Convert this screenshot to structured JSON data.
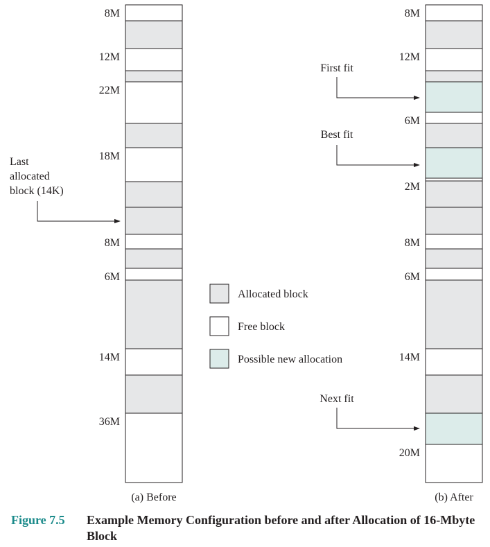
{
  "colors": {
    "allocated": "#e6e7e8",
    "free": "#ffffff",
    "possible": "#dcecea",
    "caption_accent": "#1a8a8a"
  },
  "before": {
    "sublabel": "(a) Before",
    "blocks": [
      {
        "type": "free",
        "size_label": "8M"
      },
      {
        "type": "allocated",
        "size_label": ""
      },
      {
        "type": "free",
        "size_label": "12M"
      },
      {
        "type": "allocated",
        "size_label": ""
      },
      {
        "type": "free",
        "size_label": "22M"
      },
      {
        "type": "allocated",
        "size_label": ""
      },
      {
        "type": "free",
        "size_label": "18M"
      },
      {
        "type": "allocated",
        "size_label": ""
      },
      {
        "type": "allocated",
        "size_label": ""
      },
      {
        "type": "free",
        "size_label": "8M"
      },
      {
        "type": "allocated",
        "size_label": ""
      },
      {
        "type": "free",
        "size_label": "6M"
      },
      {
        "type": "allocated",
        "size_label": ""
      },
      {
        "type": "free",
        "size_label": "14M"
      },
      {
        "type": "allocated",
        "size_label": ""
      },
      {
        "type": "free",
        "size_label": "36M"
      }
    ],
    "pointer": {
      "lines": [
        "Last",
        "allocated",
        "block (14K)"
      ]
    }
  },
  "after": {
    "sublabel": "(b) After",
    "blocks": [
      {
        "type": "free",
        "size_label": "8M"
      },
      {
        "type": "allocated",
        "size_label": ""
      },
      {
        "type": "free",
        "size_label": "12M"
      },
      {
        "type": "allocated",
        "size_label": ""
      },
      {
        "type": "possible",
        "size_label": ""
      },
      {
        "type": "free",
        "size_label": "6M"
      },
      {
        "type": "allocated",
        "size_label": ""
      },
      {
        "type": "possible",
        "size_label": ""
      },
      {
        "type": "free",
        "size_label": "2M"
      },
      {
        "type": "allocated",
        "size_label": ""
      },
      {
        "type": "allocated",
        "size_label": ""
      },
      {
        "type": "free",
        "size_label": "8M"
      },
      {
        "type": "allocated",
        "size_label": ""
      },
      {
        "type": "free",
        "size_label": "6M"
      },
      {
        "type": "allocated",
        "size_label": ""
      },
      {
        "type": "free",
        "size_label": "14M"
      },
      {
        "type": "allocated",
        "size_label": ""
      },
      {
        "type": "possible",
        "size_label": ""
      },
      {
        "type": "free",
        "size_label": "20M"
      }
    ],
    "pointers": [
      "First fit",
      "Best fit",
      "Next fit"
    ]
  },
  "legend": [
    {
      "type": "allocated",
      "label": "Allocated block"
    },
    {
      "type": "free",
      "label": "Free block"
    },
    {
      "type": "possible",
      "label": "Possible new allocation"
    }
  ],
  "caption": {
    "label": "Figure 7.5",
    "title": "Example Memory Configuration before and after Allocation of 16-Mbyte Block"
  }
}
